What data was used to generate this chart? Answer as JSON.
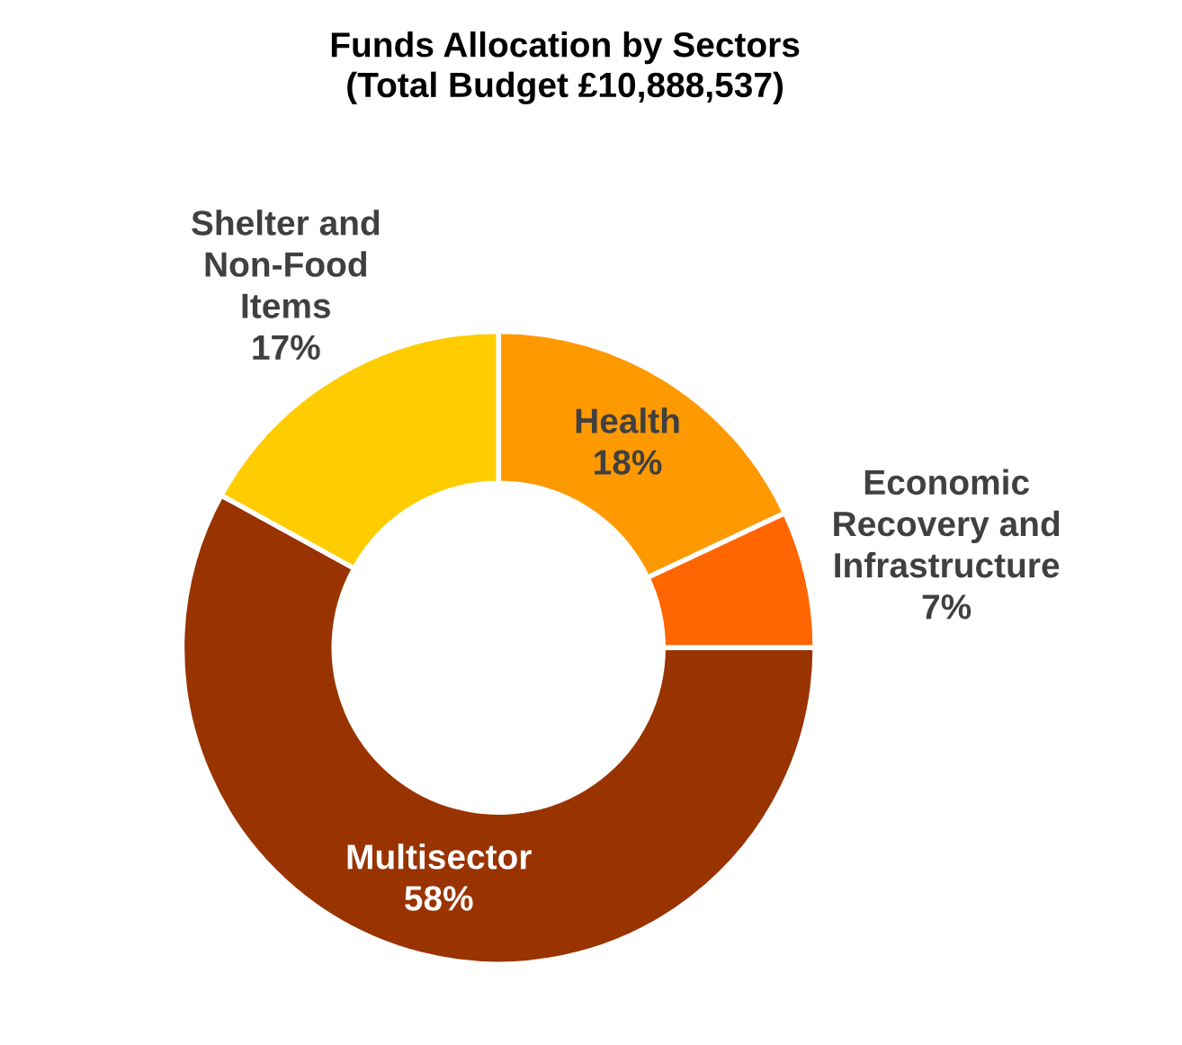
{
  "chart_data": {
    "type": "donut",
    "title": "Funds Allocation by Sectors\n(Total Budget £10,888,537)",
    "categories": [
      "Health",
      "Economic\nRecovery and\nInfrastructure",
      "Multisector",
      "Shelter and\nNon-Food\nItems"
    ],
    "values": [
      18,
      7,
      58,
      17
    ],
    "colors": [
      "#ff9900",
      "#ff6600",
      "#993300",
      "#ffcc00"
    ],
    "value_labels": [
      "18%",
      "7%",
      "58%",
      "17%"
    ],
    "legend": false
  }
}
